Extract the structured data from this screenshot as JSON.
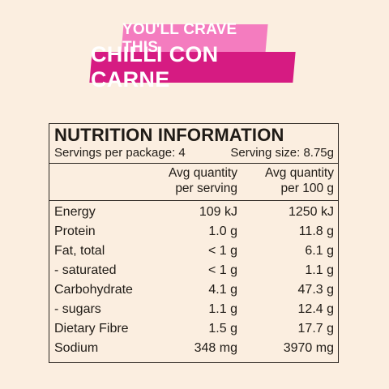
{
  "banner": {
    "tagline": "YOU'LL CRAVE THIS",
    "product": "CHILLI CON CARNE"
  },
  "colors": {
    "tagline_bg": "#f47cbf",
    "product_bg": "#d61b82",
    "background": "#fbeee0"
  },
  "nutrition": {
    "title": "NUTRITION INFORMATION",
    "servings_per_package": "Servings per package: 4",
    "serving_size": "Serving size: 8.75g",
    "col1_header_line1": "Avg quantity",
    "col1_header_line2": "per serving",
    "col2_header_line1": "Avg quantity",
    "col2_header_line2": "per 100 g",
    "rows": [
      {
        "label": "Energy",
        "per_serving": "109 kJ",
        "per_100g": "1250 kJ"
      },
      {
        "label": "Protein",
        "per_serving": "1.0 g",
        "per_100g": "11.8 g"
      },
      {
        "label": "Fat, total",
        "per_serving": "< 1 g",
        "per_100g": "6.1 g"
      },
      {
        "label": "- saturated",
        "per_serving": "< 1 g",
        "per_100g": "1.1 g"
      },
      {
        "label": "Carbohydrate",
        "per_serving": "4.1 g",
        "per_100g": "47.3 g"
      },
      {
        "label": "- sugars",
        "per_serving": "1.1 g",
        "per_100g": "12.4 g"
      },
      {
        "label": "Dietary Fibre",
        "per_serving": "1.5 g",
        "per_100g": "17.7 g"
      },
      {
        "label": "Sodium",
        "per_serving": "348 mg",
        "per_100g": "3970 mg"
      }
    ]
  }
}
